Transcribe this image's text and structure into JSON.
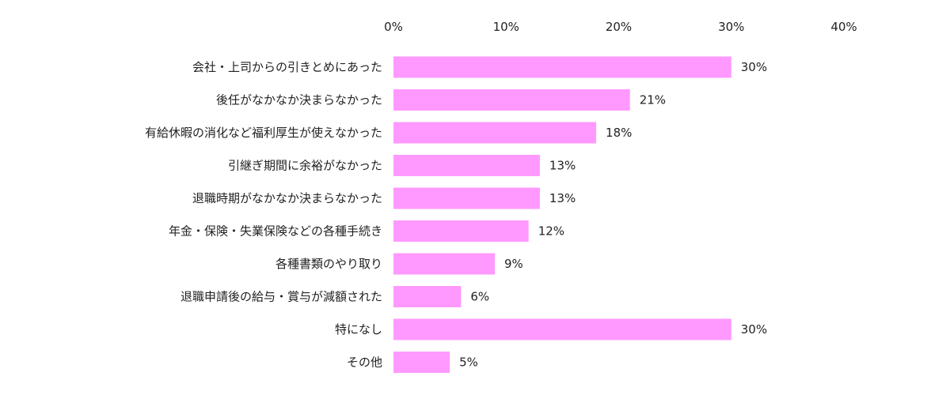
{
  "chart_data": {
    "type": "bar",
    "orientation": "horizontal",
    "categories": [
      "会社・上司からの引きとめにあった",
      "後任がなかなか決まらなかった",
      "有給休暇の消化など福利厚生が使えなかった",
      "引継ぎ期間に余裕がなかった",
      "退職時期がなかなか決まらなかった",
      "年金・保険・失業保険などの各種手続き",
      "各種書類のやり取り",
      "退職申請後の給与・賞与が減額された",
      "特になし",
      "その他"
    ],
    "values": [
      30,
      21,
      18,
      13,
      13,
      12,
      9,
      6,
      30,
      5
    ],
    "value_labels": [
      "30%",
      "21%",
      "18%",
      "13%",
      "13%",
      "12%",
      "9%",
      "6%",
      "30%",
      "5%"
    ],
    "xlim": [
      0,
      40
    ],
    "ticks": [
      0,
      10,
      20,
      30,
      40
    ],
    "tick_labels": [
      "0%",
      "10%",
      "20%",
      "30%",
      "40%"
    ],
    "grid": false,
    "legend": "none",
    "bar_color": "#FF99FF"
  }
}
